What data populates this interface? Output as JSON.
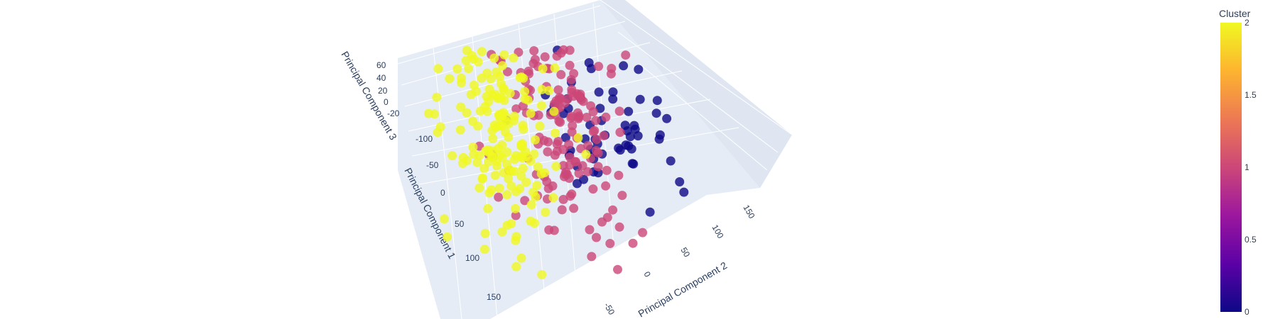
{
  "chart_data": {
    "type": "scatter",
    "subtype": "scatter3d",
    "axes": {
      "x": {
        "label": "Principal Component 1",
        "ticks": [
          "-100",
          "-50",
          "0",
          "50",
          "100",
          "150"
        ]
      },
      "y": {
        "label": "Principal Component 2",
        "ticks": [
          "-50",
          "0",
          "50",
          "100",
          "150"
        ]
      },
      "z": {
        "label": "Principal Component 3",
        "ticks": [
          "60",
          "40",
          "20",
          "0",
          "-20"
        ]
      }
    },
    "colorbar": {
      "title": "Cluster",
      "ticks": [
        "2",
        "1.5",
        "1",
        "0.5",
        "0"
      ],
      "colors": [
        "#f0f921",
        "#fdb42f",
        "#ed7953",
        "#cc4778",
        "#9c179e",
        "#5c01a6",
        "#0d0887"
      ]
    },
    "clusters": [
      {
        "name": "0",
        "color": "#0d0887",
        "count": 60
      },
      {
        "name": "1",
        "color": "#cc4778",
        "count": 150
      },
      {
        "name": "2",
        "color": "#f0f921",
        "count": 170
      }
    ],
    "scene_background": "#e5ecf6",
    "grid": true
  }
}
